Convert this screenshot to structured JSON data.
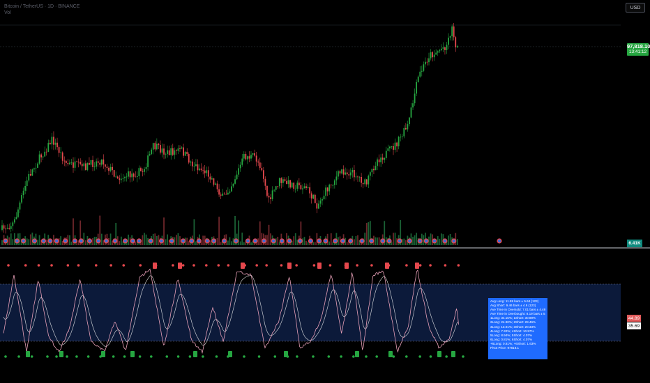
{
  "header": {
    "title": "Bitcoin / TetherUS · 1D · BINANCE",
    "subtitle": "Vol"
  },
  "currency_button": {
    "label": "USD"
  },
  "price_label": {
    "price": "97,818.10",
    "countdown": "13:41:12"
  },
  "volume_label": {
    "value": "6.41K"
  },
  "oscillator_labels": {
    "k": "44.89",
    "d": "35.69"
  },
  "stats_box": {
    "lines": [
      "Avg Long: 11.59 bars ± 5.64 (123)",
      "Avg Short: 9.46 bars ± 4.6 (123)",
      "Ave Time in Oversold: 7.01 bars ± 4.49",
      "Ave Time in Overbought: 8.19 bars ± 5.43",
      "1Long: 34.15%; 1Short: 30.89%",
      "2Long: 24.90%; 2Short: 28.46%",
      "3Long: 13.01%; 3Short: 20.33%",
      "4Long: 7.32%; 4Short: 10.57%",
      "5Long: 8.94%; 5Short: 4.07%",
      "6Long: 0.81%; 6Short: 4.07%",
      "+6Long: 0.81%; +6Short: 1.63%",
      "Pivot Price: 97818.1"
    ]
  },
  "colors": {
    "background": "#000000",
    "up": "#26a641",
    "down": "#e5484d",
    "band": "#0c1a3a",
    "k_line": "#e8a0b8",
    "d_line": "#f2f2f2",
    "signal_blue": "#1f6bff"
  }
}
